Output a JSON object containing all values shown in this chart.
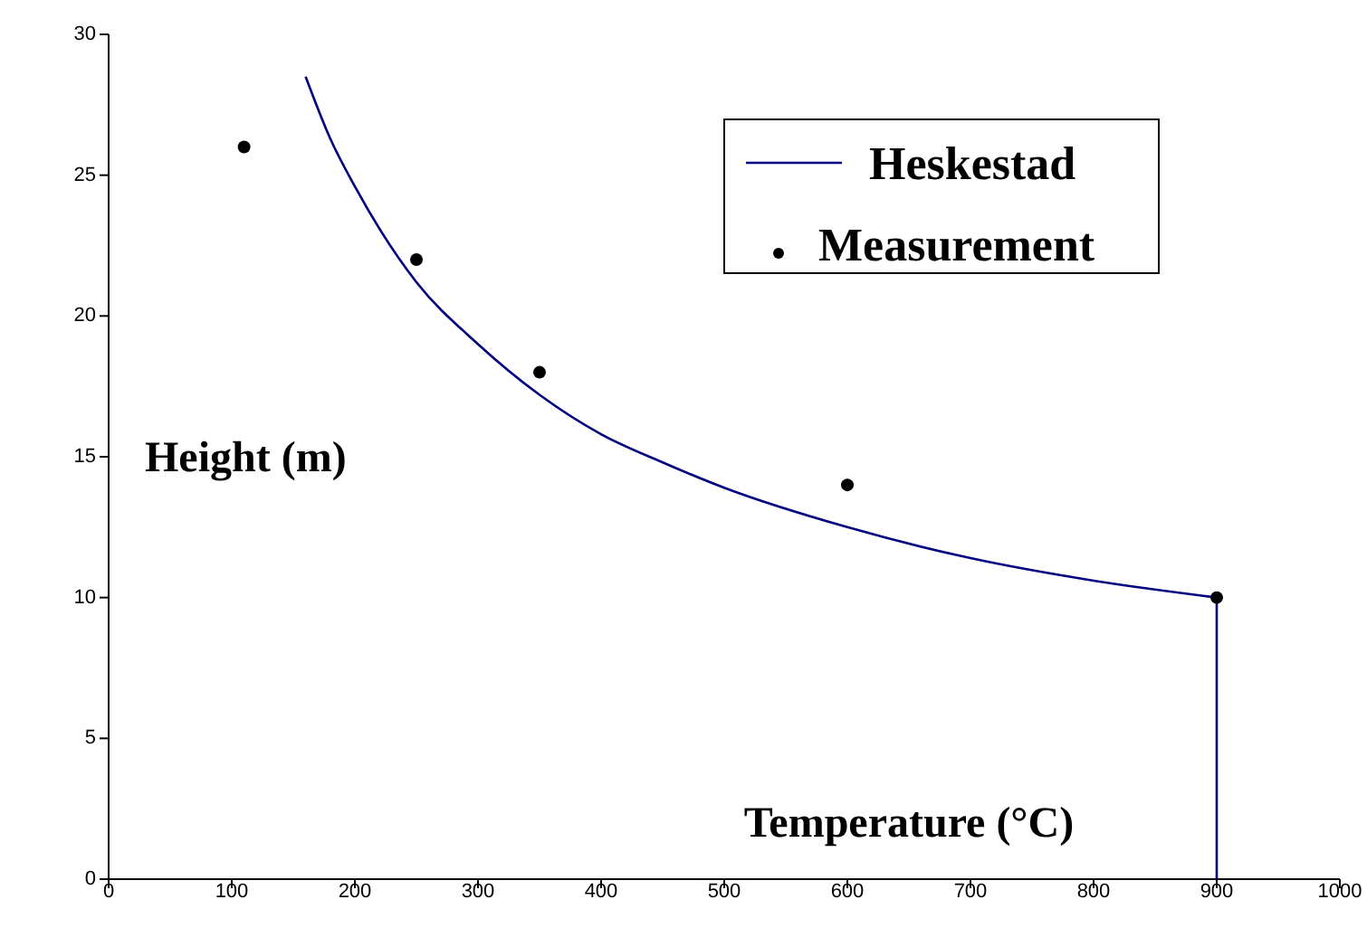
{
  "chart_data": {
    "type": "line",
    "xlabel": "Temperature (°C)",
    "ylabel": "Height (m)",
    "xlim": [
      0,
      1000
    ],
    "xticks": [
      0,
      100,
      200,
      300,
      400,
      500,
      600,
      700,
      800,
      900,
      1000
    ],
    "ylim": [
      0,
      30
    ],
    "yticks": [
      0,
      5,
      10,
      15,
      20,
      25,
      30
    ],
    "legend": "top right",
    "grid": false,
    "series": [
      {
        "name": "Heskestad",
        "color": "#000080",
        "marker": "none",
        "x": [
          160,
          180,
          200,
          250,
          300,
          350,
          400,
          450,
          500,
          600,
          700,
          800,
          900,
          900
        ],
        "values": [
          28.5,
          26.3,
          24.6,
          21.2,
          19,
          17.2,
          15.8,
          14.8,
          13.9,
          12.5,
          11.4,
          10.6,
          10,
          0
        ]
      },
      {
        "name": "Measurement",
        "type": "scatter",
        "color": "#000000",
        "marker": "circle",
        "x": [
          110,
          250,
          350,
          600,
          900
        ],
        "values": [
          26,
          22,
          18,
          14,
          10
        ]
      }
    ]
  }
}
